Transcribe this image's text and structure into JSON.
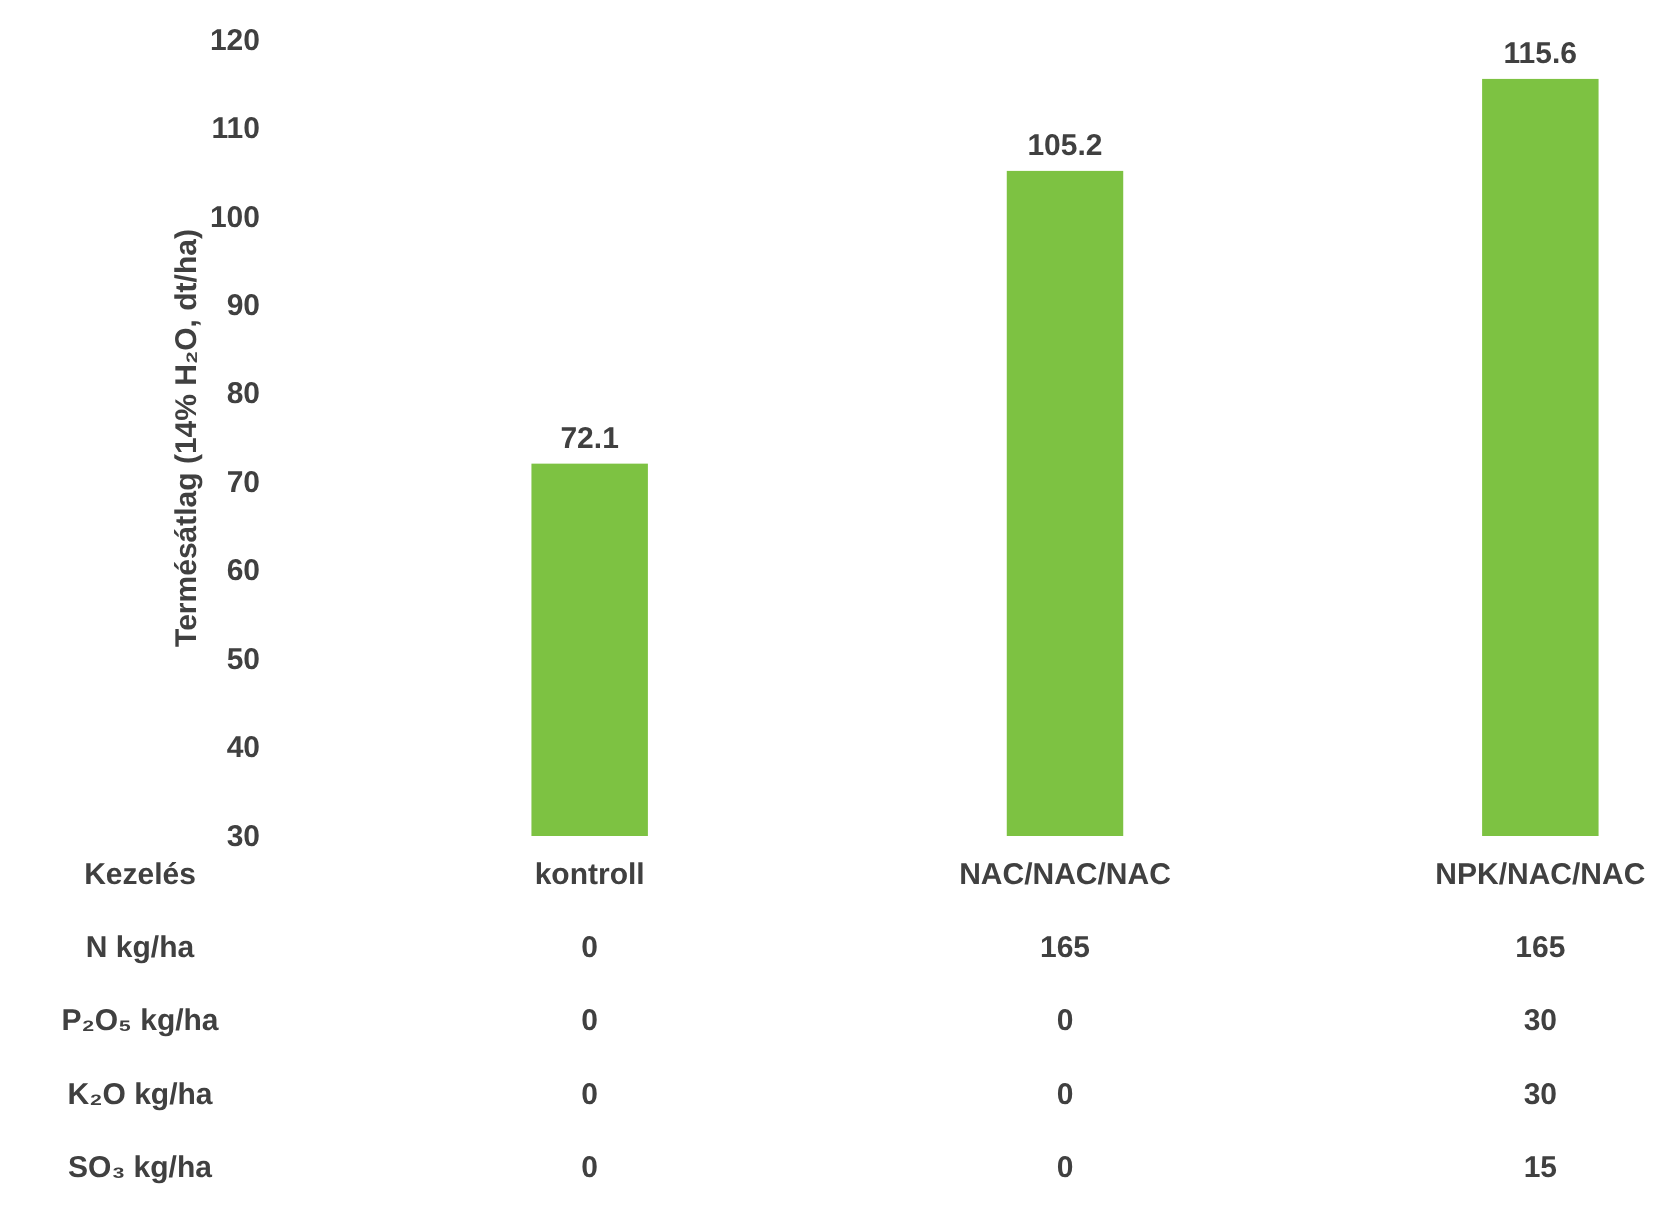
{
  "chart_data": {
    "type": "bar",
    "ylabel": "Termésátlag (14% H₂O, dt/ha)",
    "categories": [
      "kontroll",
      "NAC/NAC/NAC",
      "NPK/NAC/NAC"
    ],
    "values": [
      72.1,
      105.2,
      115.6
    ],
    "color": "#7dc242",
    "data_labels": true,
    "ylim": [
      30,
      120
    ],
    "yticks": [
      30,
      40,
      50,
      60,
      70,
      80,
      90,
      100,
      110,
      120
    ],
    "grid": false,
    "annotations": [
      "Kezelés",
      "N kg/ha",
      "0",
      "165",
      "165",
      "P₂O₅ kg/ha",
      "0",
      "0",
      "30",
      "K₂O kg/ha",
      "0",
      "0",
      "30",
      "SO₃ kg/ha",
      "0",
      "0",
      "15"
    ]
  }
}
